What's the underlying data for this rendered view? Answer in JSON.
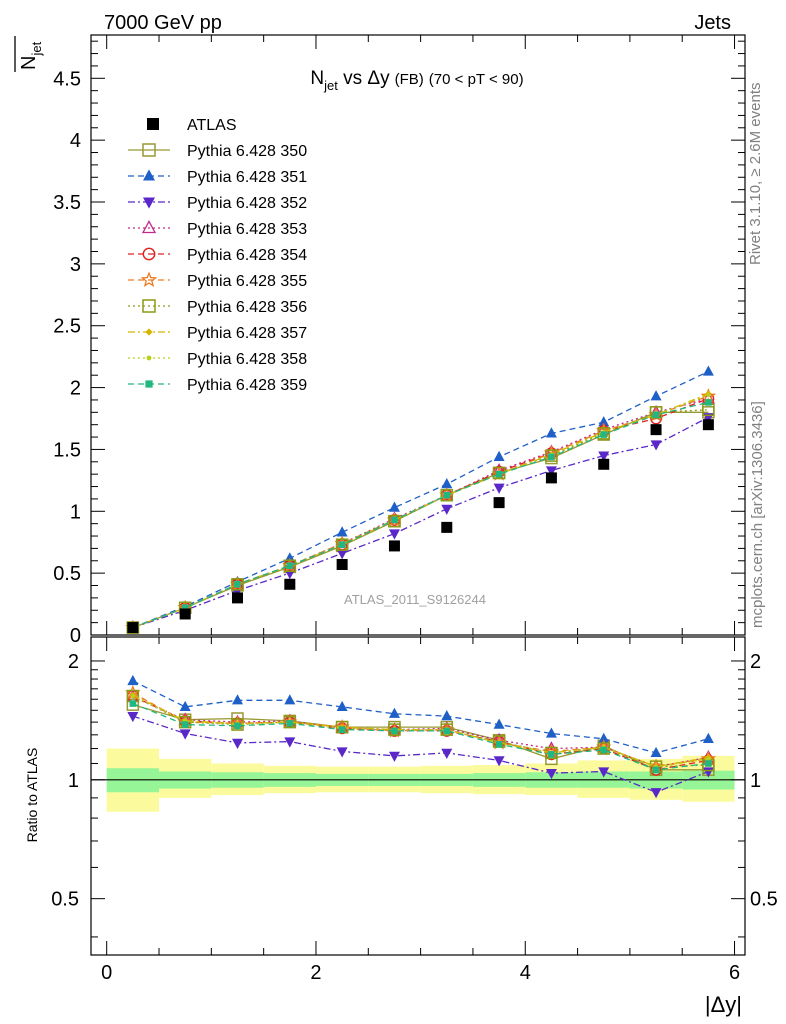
{
  "header": {
    "left": "7000 GeV pp",
    "right": "Jets"
  },
  "side": {
    "rivet": "Rivet 3.1.10, ≥ 2.6M events",
    "mcplots": "mcplots.cern.ch [arXiv:1306.3436]"
  },
  "analysis_label": "ATLAS_2011_S9126244",
  "chart_data": [
    {
      "type": "scatter",
      "title": "N_jet vs Δy (FB) (70 < pT < 90)",
      "title_parts": {
        "main_a": "N",
        "main_sub": "jet",
        "main_b": " vs Δy",
        "small": "(FB)",
        "cut": "(70 < pT <  90)"
      },
      "ylabel": "N_jet",
      "ylabel_parts": {
        "main": "N",
        "sub": "jet"
      },
      "xlabel": "|Δy|",
      "xlim": [
        -0.15,
        6.1
      ],
      "ylim": [
        0,
        4.85
      ],
      "yticks": [
        "0",
        "0.5",
        "1",
        "1.5",
        "2",
        "2.5",
        "3",
        "3.5",
        "4",
        "4.5"
      ],
      "ytick_values": [
        0,
        0.5,
        1,
        1.5,
        2,
        2.5,
        3,
        3.5,
        4,
        4.5
      ],
      "x": [
        0.25,
        0.75,
        1.25,
        1.75,
        2.25,
        2.75,
        3.25,
        3.75,
        4.25,
        4.75,
        5.25,
        5.75
      ],
      "legend": {
        "placement": "top-left"
      },
      "series": [
        {
          "name": "ATLAS",
          "marker": "square-filled",
          "color": "#000000",
          "line": "none",
          "values": [
            0.06,
            0.17,
            0.3,
            0.41,
            0.57,
            0.72,
            0.87,
            1.07,
            1.27,
            1.38,
            1.66,
            1.7
          ]
        },
        {
          "name": "Pythia 6.428 350",
          "marker": "square-open",
          "color": "#999933",
          "line": "solid",
          "values": [
            0.06,
            0.22,
            0.4,
            0.55,
            0.72,
            0.92,
            1.13,
            1.31,
            1.43,
            1.62,
            1.8,
            1.8
          ]
        },
        {
          "name": "Pythia 6.428 351",
          "marker": "triangle-up-filled",
          "color": "#1e5fc8",
          "line": "dashed",
          "values": [
            0.06,
            0.23,
            0.43,
            0.62,
            0.83,
            1.03,
            1.22,
            1.44,
            1.63,
            1.72,
            1.93,
            2.13
          ]
        },
        {
          "name": "Pythia 6.428 352",
          "marker": "triangle-down-filled",
          "color": "#5a28c8",
          "line": "dashdot",
          "values": [
            0.06,
            0.2,
            0.36,
            0.5,
            0.66,
            0.82,
            1.02,
            1.19,
            1.33,
            1.45,
            1.54,
            1.76
          ]
        },
        {
          "name": "Pythia 6.428 353",
          "marker": "triangle-up-open",
          "color": "#c02a8a",
          "line": "dotted",
          "values": [
            0.06,
            0.22,
            0.41,
            0.56,
            0.74,
            0.94,
            1.13,
            1.33,
            1.48,
            1.66,
            1.8,
            1.91
          ]
        },
        {
          "name": "Pythia 6.428 354",
          "marker": "circle-open",
          "color": "#e0201e",
          "line": "dashed",
          "values": [
            0.06,
            0.22,
            0.41,
            0.56,
            0.73,
            0.93,
            1.13,
            1.32,
            1.47,
            1.65,
            1.75,
            1.91
          ]
        },
        {
          "name": "Pythia 6.428 355",
          "marker": "star-open",
          "color": "#ee7a20",
          "line": "dashed",
          "values": [
            0.06,
            0.22,
            0.41,
            0.56,
            0.74,
            0.93,
            1.13,
            1.3,
            1.47,
            1.65,
            1.78,
            1.93
          ]
        },
        {
          "name": "Pythia 6.428 356",
          "marker": "square-open",
          "color": "#8c9a14",
          "line": "dotted",
          "values": [
            0.06,
            0.22,
            0.41,
            0.56,
            0.73,
            0.92,
            1.13,
            1.31,
            1.45,
            1.63,
            1.8,
            1.82
          ]
        },
        {
          "name": "Pythia 6.428 357",
          "marker": "diamond-small",
          "color": "#d8b400",
          "line": "dashdot",
          "values": [
            0.06,
            0.22,
            0.41,
            0.56,
            0.73,
            0.93,
            1.13,
            1.3,
            1.46,
            1.64,
            1.78,
            1.95
          ]
        },
        {
          "name": "Pythia 6.428 358",
          "marker": "dot-small",
          "color": "#b8d018",
          "line": "dotted",
          "values": [
            0.06,
            0.22,
            0.41,
            0.56,
            0.73,
            0.93,
            1.13,
            1.3,
            1.46,
            1.64,
            1.78,
            1.94
          ]
        },
        {
          "name": "Pythia 6.428 359",
          "marker": "square-small-filled",
          "color": "#20b880",
          "line": "dashed",
          "values": [
            0.06,
            0.22,
            0.41,
            0.56,
            0.73,
            0.93,
            1.13,
            1.3,
            1.44,
            1.62,
            1.78,
            1.88
          ]
        }
      ]
    },
    {
      "type": "scatter",
      "title": "",
      "ylabel": "Ratio to ATLAS",
      "xlabel": "|Δy|",
      "xlim": [
        -0.15,
        6.1
      ],
      "ylim": [
        0.36,
        2.3
      ],
      "ytick_labels": [
        "0.5",
        "1",
        "2"
      ],
      "ytick_values": [
        0.5,
        1,
        2
      ],
      "xticks": [
        "0",
        "2",
        "4",
        "6"
      ],
      "xtick_values": [
        0,
        2,
        4,
        6
      ],
      "reference_line": 1,
      "bands": {
        "x_edges": [
          0,
          0.5,
          1.0,
          1.5,
          2.0,
          2.5,
          3.0,
          3.5,
          4.0,
          4.5,
          5.0,
          5.5,
          6.0
        ],
        "inner_lo": [
          0.93,
          0.95,
          0.955,
          0.96,
          0.965,
          0.965,
          0.965,
          0.96,
          0.955,
          0.955,
          0.95,
          0.945
        ],
        "inner_hi": [
          1.07,
          1.05,
          1.045,
          1.04,
          1.035,
          1.035,
          1.035,
          1.04,
          1.045,
          1.05,
          1.05,
          1.055
        ],
        "outer_lo": [
          0.83,
          0.9,
          0.915,
          0.925,
          0.93,
          0.93,
          0.925,
          0.92,
          0.915,
          0.9,
          0.89,
          0.88
        ],
        "outer_hi": [
          1.2,
          1.13,
          1.1,
          1.085,
          1.08,
          1.08,
          1.085,
          1.09,
          1.1,
          1.12,
          1.13,
          1.15
        ],
        "inner_color": "#96f596",
        "outer_color": "#fbfb9e"
      },
      "series": [
        {
          "name": "Pythia 6.428 350",
          "values": [
            1.55,
            1.42,
            1.43,
            1.41,
            1.36,
            1.36,
            1.36,
            1.26,
            1.13,
            1.22,
            1.06,
            1.06
          ]
        },
        {
          "name": "Pythia 6.428 351",
          "values": [
            1.78,
            1.53,
            1.59,
            1.59,
            1.53,
            1.47,
            1.45,
            1.38,
            1.31,
            1.27,
            1.17,
            1.27
          ]
        },
        {
          "name": "Pythia 6.428 352",
          "values": [
            1.45,
            1.31,
            1.24,
            1.25,
            1.18,
            1.15,
            1.17,
            1.12,
            1.04,
            1.05,
            0.93,
            1.05
          ]
        },
        {
          "name": "Pythia 6.428 353",
          "values": [
            1.62,
            1.42,
            1.4,
            1.41,
            1.35,
            1.34,
            1.35,
            1.26,
            1.2,
            1.21,
            1.08,
            1.14
          ]
        },
        {
          "name": "Pythia 6.428 354",
          "values": [
            1.63,
            1.41,
            1.39,
            1.4,
            1.35,
            1.33,
            1.33,
            1.25,
            1.16,
            1.2,
            1.06,
            1.12
          ]
        },
        {
          "name": "Pythia 6.428 355",
          "values": [
            1.66,
            1.4,
            1.39,
            1.4,
            1.36,
            1.33,
            1.34,
            1.24,
            1.18,
            1.21,
            1.08,
            1.13
          ]
        },
        {
          "name": "Pythia 6.428 356",
          "values": [
            1.63,
            1.4,
            1.38,
            1.4,
            1.36,
            1.34,
            1.34,
            1.25,
            1.17,
            1.2,
            1.08,
            1.09
          ]
        },
        {
          "name": "Pythia 6.428 357",
          "values": [
            1.64,
            1.41,
            1.39,
            1.4,
            1.36,
            1.34,
            1.34,
            1.24,
            1.17,
            1.21,
            1.08,
            1.14
          ]
        },
        {
          "name": "Pythia 6.428 358",
          "values": [
            1.63,
            1.41,
            1.38,
            1.4,
            1.35,
            1.34,
            1.34,
            1.24,
            1.17,
            1.21,
            1.08,
            1.13
          ]
        },
        {
          "name": "Pythia 6.428 359",
          "values": [
            1.56,
            1.38,
            1.37,
            1.39,
            1.34,
            1.33,
            1.33,
            1.23,
            1.16,
            1.19,
            1.06,
            1.1
          ]
        }
      ]
    }
  ]
}
